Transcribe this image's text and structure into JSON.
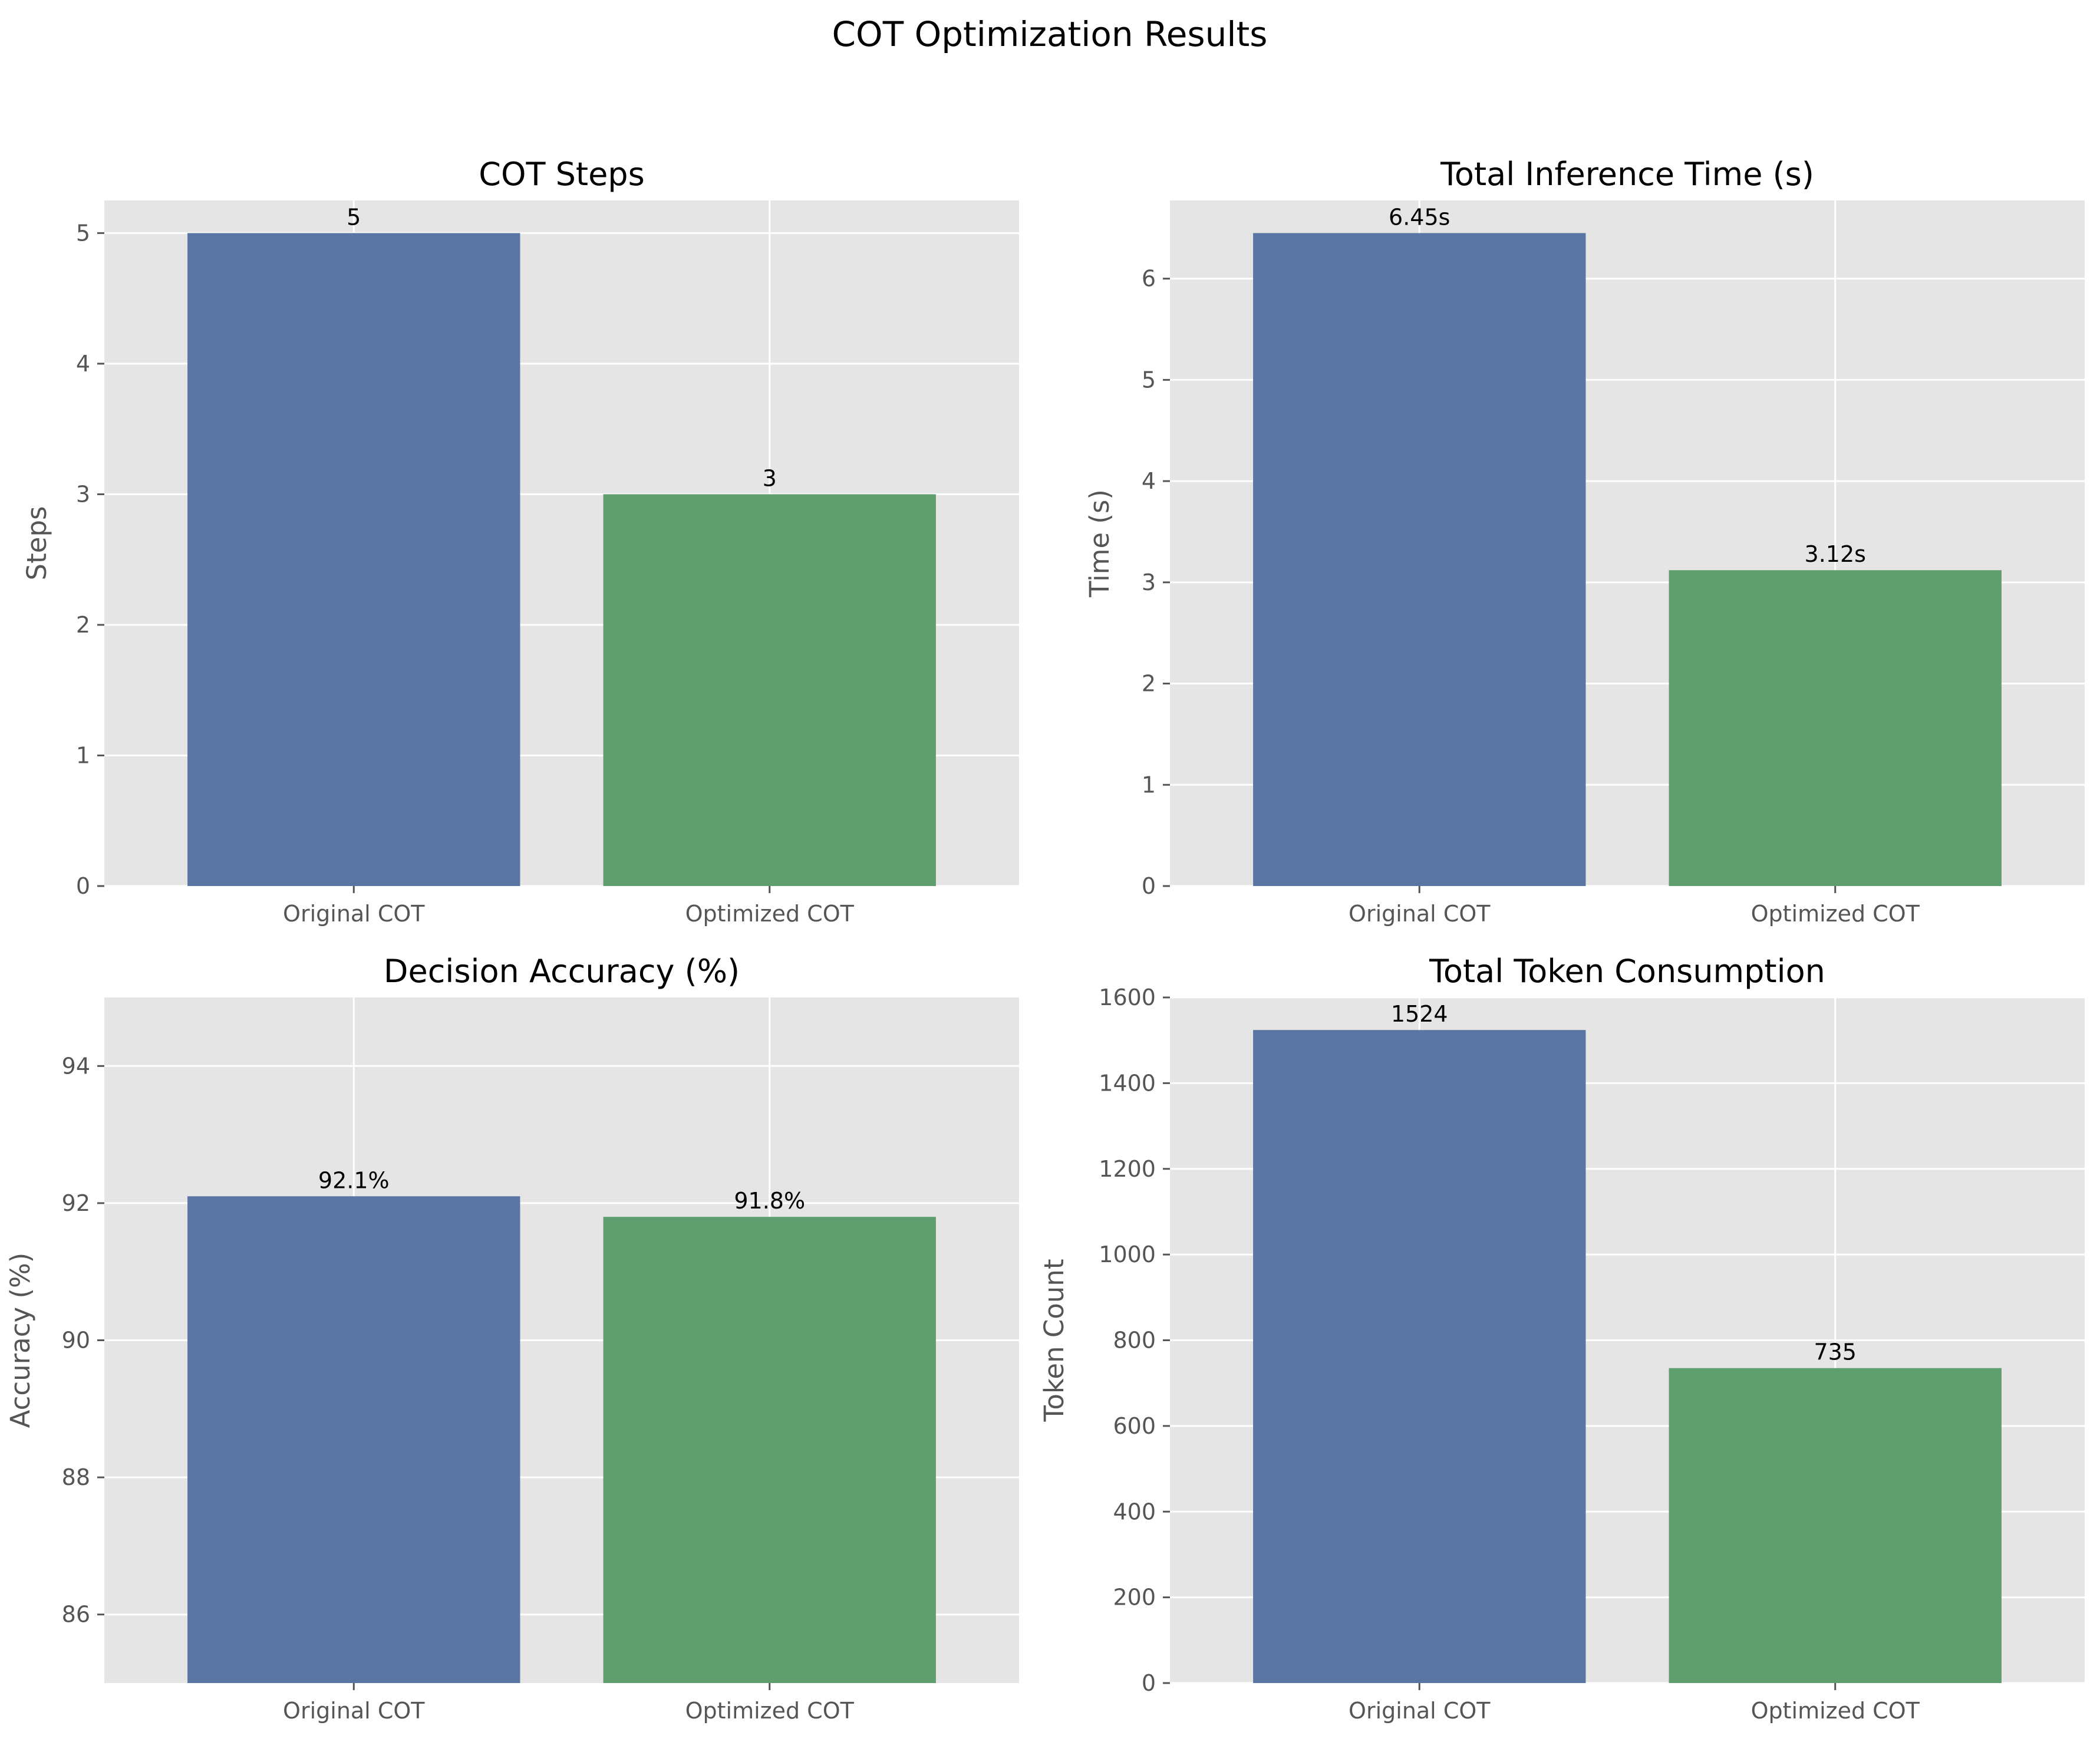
{
  "figure": {
    "title": "COT Optimization Results"
  },
  "colors": {
    "original": "#5975a4",
    "optimized": "#5f9e6e",
    "plot_background": "#e5e5e5",
    "grid": "#ffffff"
  },
  "chart_data": [
    {
      "type": "bar",
      "title": "COT Steps",
      "xlabel": "",
      "ylabel": "Steps",
      "categories": [
        "Original COT",
        "Optimized COT"
      ],
      "values": [
        5,
        3
      ],
      "value_labels": [
        "5",
        "3"
      ],
      "ylim": [
        0,
        5.25
      ],
      "yticks": [
        0,
        1,
        2,
        3,
        4,
        5
      ],
      "ytick_labels": [
        "0",
        "1",
        "2",
        "3",
        "4",
        "5"
      ],
      "grid": true
    },
    {
      "type": "bar",
      "title": "Total Inference Time (s)",
      "xlabel": "",
      "ylabel": "Time (s)",
      "categories": [
        "Original COT",
        "Optimized COT"
      ],
      "values": [
        6.45,
        3.12
      ],
      "value_labels": [
        "6.45s",
        "3.12s"
      ],
      "ylim": [
        0,
        6.7725
      ],
      "yticks": [
        0,
        1,
        2,
        3,
        4,
        5,
        6
      ],
      "ytick_labels": [
        "0",
        "1",
        "2",
        "3",
        "4",
        "5",
        "6"
      ],
      "grid": true
    },
    {
      "type": "bar",
      "title": "Decision Accuracy (%)",
      "xlabel": "",
      "ylabel": "Accuracy (%)",
      "categories": [
        "Original COT",
        "Optimized COT"
      ],
      "values": [
        92.1,
        91.8
      ],
      "value_labels": [
        "92.1%",
        "91.8%"
      ],
      "ylim": [
        85,
        95
      ],
      "yticks": [
        86,
        88,
        90,
        92,
        94
      ],
      "ytick_labels": [
        "86",
        "88",
        "90",
        "92",
        "94"
      ],
      "grid": true
    },
    {
      "type": "bar",
      "title": "Total Token Consumption",
      "xlabel": "",
      "ylabel": "Token Count",
      "categories": [
        "Original COT",
        "Optimized COT"
      ],
      "values": [
        1524,
        735
      ],
      "value_labels": [
        "1524",
        "735"
      ],
      "ylim": [
        0,
        1600
      ],
      "yticks": [
        0,
        200,
        400,
        600,
        800,
        1000,
        1200,
        1400,
        1600
      ],
      "ytick_labels": [
        "0",
        "200",
        "400",
        "600",
        "800",
        "1000",
        "1200",
        "1400",
        "1600"
      ],
      "grid": true
    }
  ]
}
